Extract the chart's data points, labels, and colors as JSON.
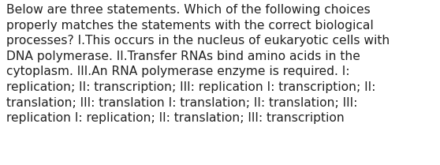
{
  "lines": [
    "Below are three statements. Which of the following choices",
    "properly matches the statements with the correct biological",
    "processes? I.This occurs in the nucleus of eukaryotic cells with",
    "DNA polymerase. II.Transfer RNAs bind amino acids in the",
    "cytoplasm. III.An RNA polymerase enzyme is required. I:",
    "replication; II: transcription; III: replication I: transcription; II:",
    "translation; III: translation I: translation; II: translation; III:",
    "replication I: replication; II: translation; III: transcription"
  ],
  "font_size": 11.2,
  "text_color": "#222222",
  "background_color": "#ffffff",
  "fig_width": 5.58,
  "fig_height": 2.09,
  "dpi": 100
}
